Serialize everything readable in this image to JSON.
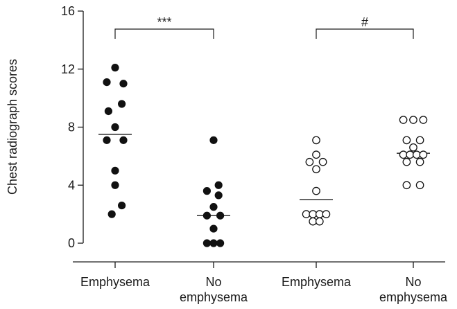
{
  "chart_data": {
    "type": "scatter",
    "ylabel": "Chest radiograph scores",
    "ylim": [
      0,
      16
    ],
    "yticks": [
      "0",
      "4",
      "8",
      "12",
      "16"
    ],
    "categories": [
      [
        "Emphysema"
      ],
      [
        "No",
        "emphysema"
      ],
      [
        "Emphysema"
      ],
      [
        "No",
        "emphysema"
      ]
    ],
    "groups": [
      {
        "marker": "filled",
        "median": 7.5,
        "points": [
          {
            "x": 0,
            "y": 12.1
          },
          {
            "x": -0.5,
            "y": 11.1
          },
          {
            "x": 0.5,
            "y": 11.0
          },
          {
            "x": 0.4,
            "y": 9.6
          },
          {
            "x": -0.4,
            "y": 9.1
          },
          {
            "x": 0,
            "y": 8.0
          },
          {
            "x": -0.5,
            "y": 7.1
          },
          {
            "x": 0.5,
            "y": 7.1
          },
          {
            "x": 0,
            "y": 5.0
          },
          {
            "x": 0,
            "y": 4.0
          },
          {
            "x": 0.4,
            "y": 2.6
          },
          {
            "x": -0.2,
            "y": 2.0
          }
        ]
      },
      {
        "marker": "filled",
        "median": 1.9,
        "points": [
          {
            "x": 0,
            "y": 7.1
          },
          {
            "x": 0.3,
            "y": 4.0
          },
          {
            "x": -0.4,
            "y": 3.6
          },
          {
            "x": 0.3,
            "y": 3.3
          },
          {
            "x": 0,
            "y": 2.5
          },
          {
            "x": -0.4,
            "y": 1.9
          },
          {
            "x": 0.4,
            "y": 1.9
          },
          {
            "x": 0,
            "y": 1.0
          },
          {
            "x": -0.4,
            "y": 0
          },
          {
            "x": 0,
            "y": 0
          },
          {
            "x": 0.4,
            "y": 0
          }
        ]
      },
      {
        "marker": "open",
        "median": 3.0,
        "points": [
          {
            "x": 0,
            "y": 7.1
          },
          {
            "x": -0.4,
            "y": 5.6
          },
          {
            "x": 0.4,
            "y": 5.6
          },
          {
            "x": 0,
            "y": 6.1
          },
          {
            "x": 0,
            "y": 5.1
          },
          {
            "x": 0,
            "y": 3.6
          },
          {
            "x": -0.6,
            "y": 2.0
          },
          {
            "x": -0.2,
            "y": 2.0
          },
          {
            "x": 0.2,
            "y": 2.0
          },
          {
            "x": 0.6,
            "y": 2.0
          },
          {
            "x": -0.2,
            "y": 1.5
          },
          {
            "x": 0.2,
            "y": 1.5
          }
        ]
      },
      {
        "marker": "open",
        "median": 6.2,
        "points": [
          {
            "x": -0.6,
            "y": 8.5
          },
          {
            "x": 0,
            "y": 8.5
          },
          {
            "x": 0.6,
            "y": 8.5
          },
          {
            "x": -0.4,
            "y": 7.1
          },
          {
            "x": 0.4,
            "y": 7.1
          },
          {
            "x": 0,
            "y": 6.6
          },
          {
            "x": -0.6,
            "y": 6.1
          },
          {
            "x": -0.2,
            "y": 6.1
          },
          {
            "x": 0.2,
            "y": 6.1
          },
          {
            "x": 0.6,
            "y": 6.1
          },
          {
            "x": -0.4,
            "y": 5.6
          },
          {
            "x": 0.4,
            "y": 5.6
          },
          {
            "x": -0.4,
            "y": 4.0
          },
          {
            "x": 0.4,
            "y": 4.0
          }
        ]
      }
    ],
    "significance": [
      {
        "from": 0,
        "to": 1,
        "label": "***"
      },
      {
        "from": 2,
        "to": 3,
        "label": "#"
      }
    ]
  }
}
